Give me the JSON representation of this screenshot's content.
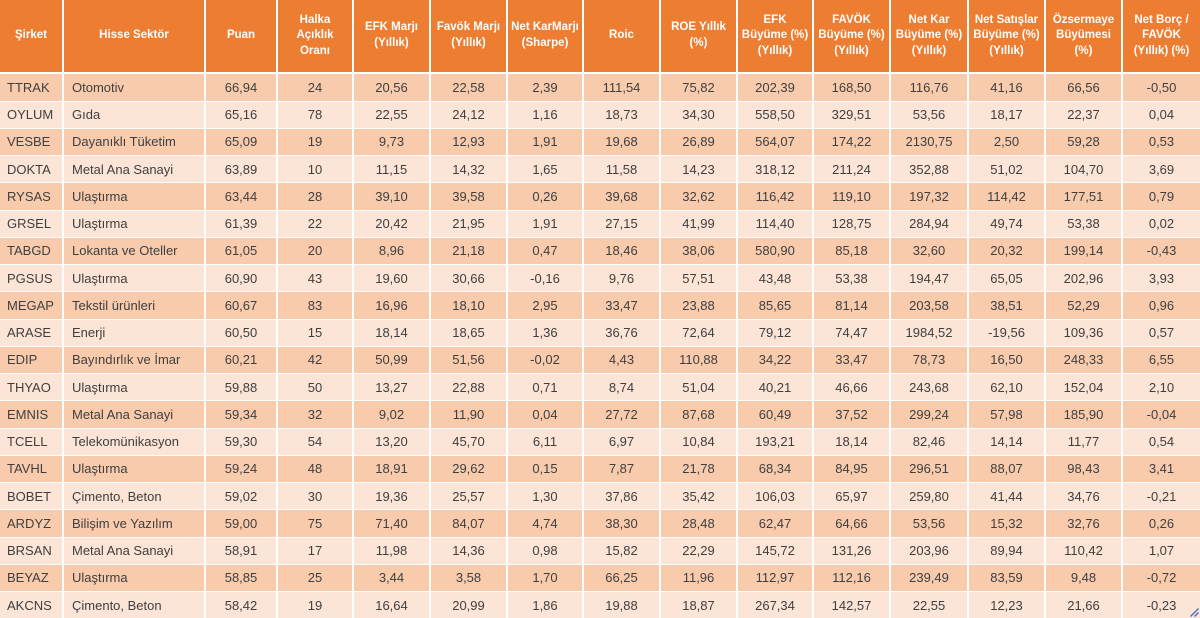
{
  "table": {
    "columns": [
      {
        "id": "sirket",
        "label": "Şirket"
      },
      {
        "id": "hisse-sektor",
        "label": "Hisse Sektör"
      },
      {
        "id": "puan",
        "label": "Puan"
      },
      {
        "id": "halka-aciklik-orani",
        "label": "Halka Açıklık Oranı"
      },
      {
        "id": "efk-marji",
        "label": "EFK Marjı (Yıllık)"
      },
      {
        "id": "favok-marji",
        "label": "Favök Marjı (Yıllık)"
      },
      {
        "id": "net-karmarji",
        "label": "Net KarMarjı (Sharpe)"
      },
      {
        "id": "roic",
        "label": "Roic"
      },
      {
        "id": "roe-yillik",
        "label": "ROE Yıllık (%)"
      },
      {
        "id": "efk-buyume",
        "label": "EFK Büyüme (%) (Yıllık)"
      },
      {
        "id": "favok-buyume",
        "label": "FAVÖK Büyüme (%) (Yıllık)"
      },
      {
        "id": "net-kar-buyume",
        "label": "Net Kar Büyüme (%) (Yıllık)"
      },
      {
        "id": "net-satislar-buyume",
        "label": "Net Satışlar Büyüme (%) (Yıllık)"
      },
      {
        "id": "ozsermaye-buyumesi",
        "label": "Özsermaye Büyümesi (%)"
      },
      {
        "id": "net-borc-favok",
        "label": "Net Borç / FAVÖK (Yıllık) (%)"
      }
    ],
    "rows": [
      [
        "TTRAK",
        "Otomotiv",
        "66,94",
        "24",
        "20,56",
        "22,58",
        "2,39",
        "111,54",
        "75,82",
        "202,39",
        "168,50",
        "116,76",
        "41,16",
        "66,56",
        "-0,50"
      ],
      [
        "OYLUM",
        "Gıda",
        "65,16",
        "78",
        "22,55",
        "24,12",
        "1,16",
        "18,73",
        "34,30",
        "558,50",
        "329,51",
        "53,56",
        "18,17",
        "22,37",
        "0,04"
      ],
      [
        "VESBE",
        "Dayanıklı Tüketim",
        "65,09",
        "19",
        "9,73",
        "12,93",
        "1,91",
        "19,68",
        "26,89",
        "564,07",
        "174,22",
        "2130,75",
        "2,50",
        "59,28",
        "0,53"
      ],
      [
        "DOKTA",
        "Metal Ana Sanayi",
        "63,89",
        "10",
        "11,15",
        "14,32",
        "1,65",
        "11,58",
        "14,23",
        "318,12",
        "211,24",
        "352,88",
        "51,02",
        "104,70",
        "3,69"
      ],
      [
        "RYSAS",
        "Ulaştırma",
        "63,44",
        "28",
        "39,10",
        "39,58",
        "0,26",
        "39,68",
        "32,62",
        "116,42",
        "119,10",
        "197,32",
        "114,42",
        "177,51",
        "0,79"
      ],
      [
        "GRSEL",
        "Ulaştırma",
        "61,39",
        "22",
        "20,42",
        "21,95",
        "1,91",
        "27,15",
        "41,99",
        "114,40",
        "128,75",
        "284,94",
        "49,74",
        "53,38",
        "0,02"
      ],
      [
        "TABGD",
        "Lokanta ve Oteller",
        "61,05",
        "20",
        "8,96",
        "21,18",
        "0,47",
        "18,46",
        "38,06",
        "580,90",
        "85,18",
        "32,60",
        "20,32",
        "199,14",
        "-0,43"
      ],
      [
        "PGSUS",
        "Ulaştırma",
        "60,90",
        "43",
        "19,60",
        "30,66",
        "-0,16",
        "9,76",
        "57,51",
        "43,48",
        "53,38",
        "194,47",
        "65,05",
        "202,96",
        "3,93"
      ],
      [
        "MEGAP",
        "Tekstil ürünleri",
        "60,67",
        "83",
        "16,96",
        "18,10",
        "2,95",
        "33,47",
        "23,88",
        "85,65",
        "81,14",
        "203,58",
        "38,51",
        "52,29",
        "0,96"
      ],
      [
        "ARASE",
        "Enerji",
        "60,50",
        "15",
        "18,14",
        "18,65",
        "1,36",
        "36,76",
        "72,64",
        "79,12",
        "74,47",
        "1984,52",
        "-19,56",
        "109,36",
        "0,57"
      ],
      [
        "EDIP",
        "Bayındırlık ve İmar",
        "60,21",
        "42",
        "50,99",
        "51,56",
        "-0,02",
        "4,43",
        "110,88",
        "34,22",
        "33,47",
        "78,73",
        "16,50",
        "248,33",
        "6,55"
      ],
      [
        "THYAO",
        "Ulaştırma",
        "59,88",
        "50",
        "13,27",
        "22,88",
        "0,71",
        "8,74",
        "51,04",
        "40,21",
        "46,66",
        "243,68",
        "62,10",
        "152,04",
        "2,10"
      ],
      [
        "EMNIS",
        "Metal Ana Sanayi",
        "59,34",
        "32",
        "9,02",
        "11,90",
        "0,04",
        "27,72",
        "87,68",
        "60,49",
        "37,52",
        "299,24",
        "57,98",
        "185,90",
        "-0,04"
      ],
      [
        "TCELL",
        "Telekomünikasyon",
        "59,30",
        "54",
        "13,20",
        "45,70",
        "6,11",
        "6,97",
        "10,84",
        "193,21",
        "18,14",
        "82,46",
        "14,14",
        "11,77",
        "0,54"
      ],
      [
        "TAVHL",
        "Ulaştırma",
        "59,24",
        "48",
        "18,91",
        "29,62",
        "0,15",
        "7,87",
        "21,78",
        "68,34",
        "84,95",
        "296,51",
        "88,07",
        "98,43",
        "3,41"
      ],
      [
        "BOBET",
        "Çimento, Beton",
        "59,02",
        "30",
        "19,36",
        "25,57",
        "1,30",
        "37,86",
        "35,42",
        "106,03",
        "65,97",
        "259,80",
        "41,44",
        "34,76",
        "-0,21"
      ],
      [
        "ARDYZ",
        "Bilişim ve Yazılım",
        "59,00",
        "75",
        "71,40",
        "84,07",
        "4,74",
        "38,30",
        "28,48",
        "62,47",
        "64,66",
        "53,56",
        "15,32",
        "32,76",
        "0,26"
      ],
      [
        "BRSAN",
        "Metal Ana Sanayi",
        "58,91",
        "17",
        "11,98",
        "14,36",
        "0,98",
        "15,82",
        "22,29",
        "145,72",
        "131,26",
        "203,96",
        "89,94",
        "110,42",
        "1,07"
      ],
      [
        "BEYAZ",
        "Ulaştırma",
        "58,85",
        "25",
        "3,44",
        "3,58",
        "1,70",
        "66,25",
        "11,96",
        "112,97",
        "112,16",
        "239,49",
        "83,59",
        "9,48",
        "-0,72"
      ],
      [
        "AKCNS",
        "Çimento, Beton",
        "58,42",
        "19",
        "16,64",
        "20,99",
        "1,86",
        "19,88",
        "18,87",
        "267,34",
        "142,57",
        "22,55",
        "12,23",
        "21,66",
        "-0,23"
      ]
    ]
  },
  "colors": {
    "header_bg": "#ED7D31",
    "row_dark": "#F8CBAD",
    "row_light": "#FCE4D6",
    "header_text": "#FFFFFF",
    "cell_text": "#3F3F3F",
    "grid": "#FFFFFF",
    "handle_blue": "#4472C4"
  }
}
